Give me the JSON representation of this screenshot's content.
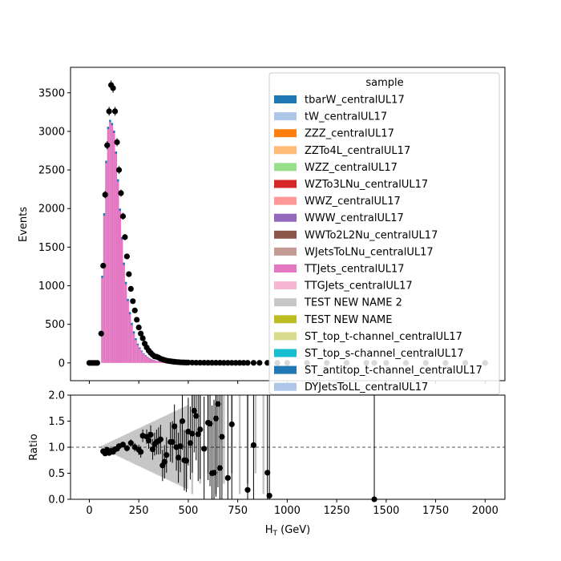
{
  "chart_data": {
    "type": "bar",
    "x_axis": {
      "label": "H_T (GeV)",
      "xlim": [
        -95,
        2100
      ],
      "ticks": [
        "0",
        "250",
        "500",
        "750",
        "1000",
        "1250",
        "1500",
        "1750",
        "2000"
      ]
    },
    "top_panel": {
      "ylabel": "Events",
      "ylim": [
        -230,
        3830
      ],
      "yticks": [
        "0",
        "500",
        "1000",
        "1500",
        "2000",
        "2500",
        "3000",
        "3500"
      ],
      "stack_bins_x": [
        65,
        75,
        85,
        95,
        105,
        115,
        125,
        135,
        145,
        155,
        165,
        175,
        185,
        195,
        205,
        215,
        225,
        235,
        245,
        255,
        265,
        275,
        285,
        295,
        305,
        315,
        325,
        335,
        345,
        355,
        365,
        375,
        385,
        395,
        405,
        415,
        425,
        435,
        445,
        455,
        465,
        475,
        485,
        495
      ],
      "stack_totals": [
        1130,
        1940,
        2620,
        3060,
        3150,
        3110,
        3010,
        2740,
        2380,
        2000,
        1630,
        1300,
        1050,
        830,
        660,
        520,
        410,
        320,
        250,
        200,
        160,
        125,
        100,
        80,
        62,
        50,
        40,
        32,
        25,
        20,
        16,
        13,
        10,
        8,
        6,
        5,
        4,
        3,
        3,
        2,
        2,
        1,
        1,
        1
      ],
      "dominant_sample": "TTJets_centralUL17",
      "top_sliver_sample": "ST_antitop_t-channel_centralUL17",
      "data_points": {
        "x": [
          0,
          10,
          20,
          30,
          40,
          60,
          70,
          80,
          90,
          100,
          110,
          120,
          130,
          140,
          150,
          160,
          170,
          180,
          190,
          200,
          210,
          220,
          230,
          240,
          250,
          260,
          270,
          280,
          290,
          300,
          310,
          320,
          330,
          340,
          350,
          360,
          370,
          380,
          390,
          400,
          410,
          420,
          430,
          440,
          450,
          460,
          470,
          480,
          490,
          500,
          520,
          540,
          560,
          580,
          600,
          620,
          640,
          660,
          680,
          700,
          720,
          740,
          760,
          780,
          800,
          830,
          860,
          900,
          950,
          1000,
          1100,
          1200,
          1300,
          1400,
          1440,
          1500,
          1600,
          1700,
          1800,
          1900,
          2000
        ],
        "y": [
          0,
          0,
          0,
          0,
          0,
          380,
          1260,
          2180,
          2820,
          3260,
          3600,
          3560,
          3260,
          2860,
          2500,
          2200,
          1900,
          1630,
          1380,
          1150,
          960,
          800,
          680,
          560,
          460,
          380,
          320,
          250,
          200,
          160,
          130,
          105,
          85,
          80,
          70,
          55,
          45,
          38,
          30,
          25,
          22,
          18,
          15,
          12,
          10,
          8,
          7,
          6,
          5,
          5,
          4,
          3,
          3,
          3,
          2,
          2,
          2,
          2,
          1,
          1,
          1,
          1,
          1,
          1,
          1,
          1,
          1,
          1,
          0,
          0,
          0,
          0,
          0,
          0,
          0,
          0,
          0,
          0,
          0,
          0,
          0
        ]
      }
    },
    "legend": {
      "title": "sample",
      "placement": "top-right",
      "entries": [
        {
          "label": "tbarW_centralUL17",
          "color": "#1f77b4"
        },
        {
          "label": "tW_centralUL17",
          "color": "#aec7e8"
        },
        {
          "label": "ZZZ_centralUL17",
          "color": "#ff7f0e"
        },
        {
          "label": "ZZTo4L_centralUL17",
          "color": "#ffbb78"
        },
        {
          "label": "WZZ_centralUL17",
          "color": "#98df8a"
        },
        {
          "label": "WZTo3LNu_centralUL17",
          "color": "#d62728"
        },
        {
          "label": "WWZ_centralUL17",
          "color": "#ff9896"
        },
        {
          "label": "WWW_centralUL17",
          "color": "#9467bd"
        },
        {
          "label": "WWTo2L2Nu_centralUL17",
          "color": "#8c564b"
        },
        {
          "label": "WJetsToLNu_centralUL17",
          "color": "#c49c94"
        },
        {
          "label": "TTJets_centralUL17",
          "color": "#e377c2"
        },
        {
          "label": "TTGJets_centralUL17",
          "color": "#f7b6d2"
        },
        {
          "label": "TEST NEW NAME 2",
          "color": "#c7c7c7"
        },
        {
          "label": "TEST NEW NAME",
          "color": "#bcbd22"
        },
        {
          "label": "ST_top_t-channel_centralUL17",
          "color": "#dbdb8d"
        },
        {
          "label": "ST_top_s-channel_centralUL17",
          "color": "#17becf"
        },
        {
          "label": "ST_antitop_t-channel_centralUL17",
          "color": "#1f77b4"
        },
        {
          "label": "DYJetsToLL_centralUL17",
          "color": "#aec7e8"
        }
      ]
    },
    "ratio_panel": {
      "ylabel": "Ratio",
      "ylim": [
        0.0,
        2.0
      ],
      "yticks": [
        "0.0",
        "0.5",
        "1.0",
        "1.5",
        "2.0"
      ],
      "reference_line": 1.0,
      "points": {
        "x": [
          70,
          80,
          90,
          100,
          110,
          120,
          130,
          140,
          150,
          170,
          190,
          210,
          230,
          250,
          260,
          270,
          290,
          300,
          310,
          320,
          330,
          340,
          350,
          360,
          370,
          380,
          390,
          410,
          420,
          430,
          440,
          450,
          460,
          470,
          480,
          490,
          500,
          510,
          520,
          530,
          540,
          550,
          560,
          580,
          600,
          610,
          620,
          630,
          640,
          650,
          660,
          670,
          700,
          720,
          800,
          830,
          900,
          910,
          1440
        ],
        "y": [
          0.92,
          0.88,
          0.95,
          0.89,
          0.93,
          0.91,
          0.96,
          0.97,
          1.02,
          1.05,
          0.98,
          1.08,
          1.0,
          0.95,
          0.91,
          1.22,
          1.2,
          1.13,
          1.24,
          0.96,
          1.06,
          1.1,
          1.12,
          1.15,
          0.65,
          0.72,
          0.85,
          1.1,
          1.1,
          1.4,
          1.0,
          0.8,
          1.02,
          1.5,
          0.75,
          0.74,
          1.3,
          1.08,
          1.26,
          1.7,
          1.6,
          1.25,
          1.34,
          0.97,
          1.47,
          1.45,
          0.5,
          0.51,
          1.55,
          1.83,
          0.6,
          1.2,
          0.41,
          1.44,
          0.18,
          1.04,
          0.51,
          0.07,
          0.0
        ],
        "yerr": [
          0.06,
          0.05,
          0.04,
          0.04,
          0.04,
          0.04,
          0.04,
          0.04,
          0.05,
          0.05,
          0.06,
          0.07,
          0.08,
          0.1,
          0.11,
          0.12,
          0.14,
          0.16,
          0.18,
          0.2,
          0.22,
          0.24,
          0.26,
          0.28,
          0.3,
          0.32,
          0.34,
          0.38,
          0.4,
          0.42,
          0.45,
          0.48,
          0.5,
          0.55,
          0.58,
          0.6,
          0.65,
          0.7,
          0.75,
          0.8,
          0.85,
          0.9,
          0.95,
          1.0,
          1.1,
          1.2,
          1.3,
          1.4,
          1.5,
          1.6,
          1.7,
          1.8,
          2.0,
          2.2,
          2.5,
          2.7,
          3.0,
          3.0,
          3.0
        ]
      }
    }
  }
}
